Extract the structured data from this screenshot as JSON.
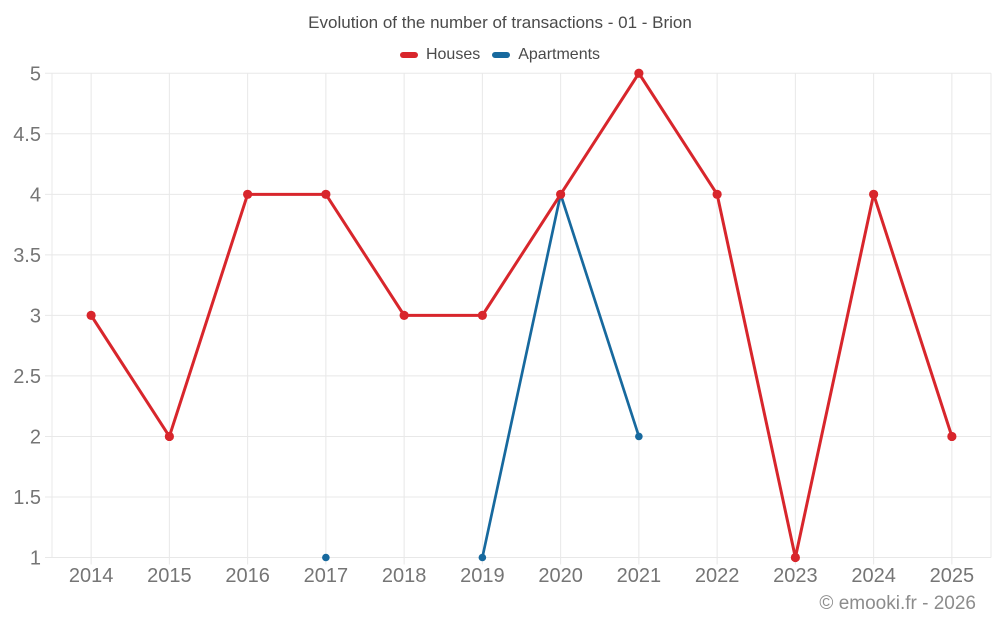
{
  "header": {
    "title": "Evolution of the number of transactions - 01 - Brion"
  },
  "legend": {
    "items": [
      {
        "label": "Houses",
        "color": "#d8262c"
      },
      {
        "label": "Apartments",
        "color": "#17699e"
      }
    ]
  },
  "chart_data": {
    "type": "line",
    "title": "Evolution of the number of transactions - 01 - Brion",
    "categories": [
      "2014",
      "2015",
      "2016",
      "2017",
      "2018",
      "2019",
      "2020",
      "2021",
      "2022",
      "2023",
      "2024",
      "2025"
    ],
    "series": [
      {
        "name": "Houses",
        "color": "#d8262c",
        "line_width": 3,
        "point_radius": 4.6,
        "values": [
          3,
          2,
          4,
          4,
          3,
          3,
          4,
          5,
          4,
          1,
          4,
          2
        ]
      },
      {
        "name": "Apartments",
        "color": "#17699e",
        "line_width": 2.7,
        "point_radius": 3.8,
        "values": [
          null,
          null,
          null,
          1,
          null,
          1,
          4,
          2,
          null,
          null,
          null,
          null
        ]
      }
    ],
    "ylim": [
      1,
      5
    ],
    "yticks": [
      1,
      1.5,
      2,
      2.5,
      3,
      3.5,
      4,
      4.5,
      5
    ],
    "grid": true,
    "legend_position": "top",
    "xlabel": "",
    "ylabel": ""
  },
  "footer": {
    "copyright": "© emooki.fr - 2026"
  },
  "style": {
    "background": "#ffffff",
    "grid_color": "#e8e8e8",
    "axis_label_color": "#757575",
    "title_color": "#4a4a4a",
    "footer_color": "#8c8c8c"
  }
}
